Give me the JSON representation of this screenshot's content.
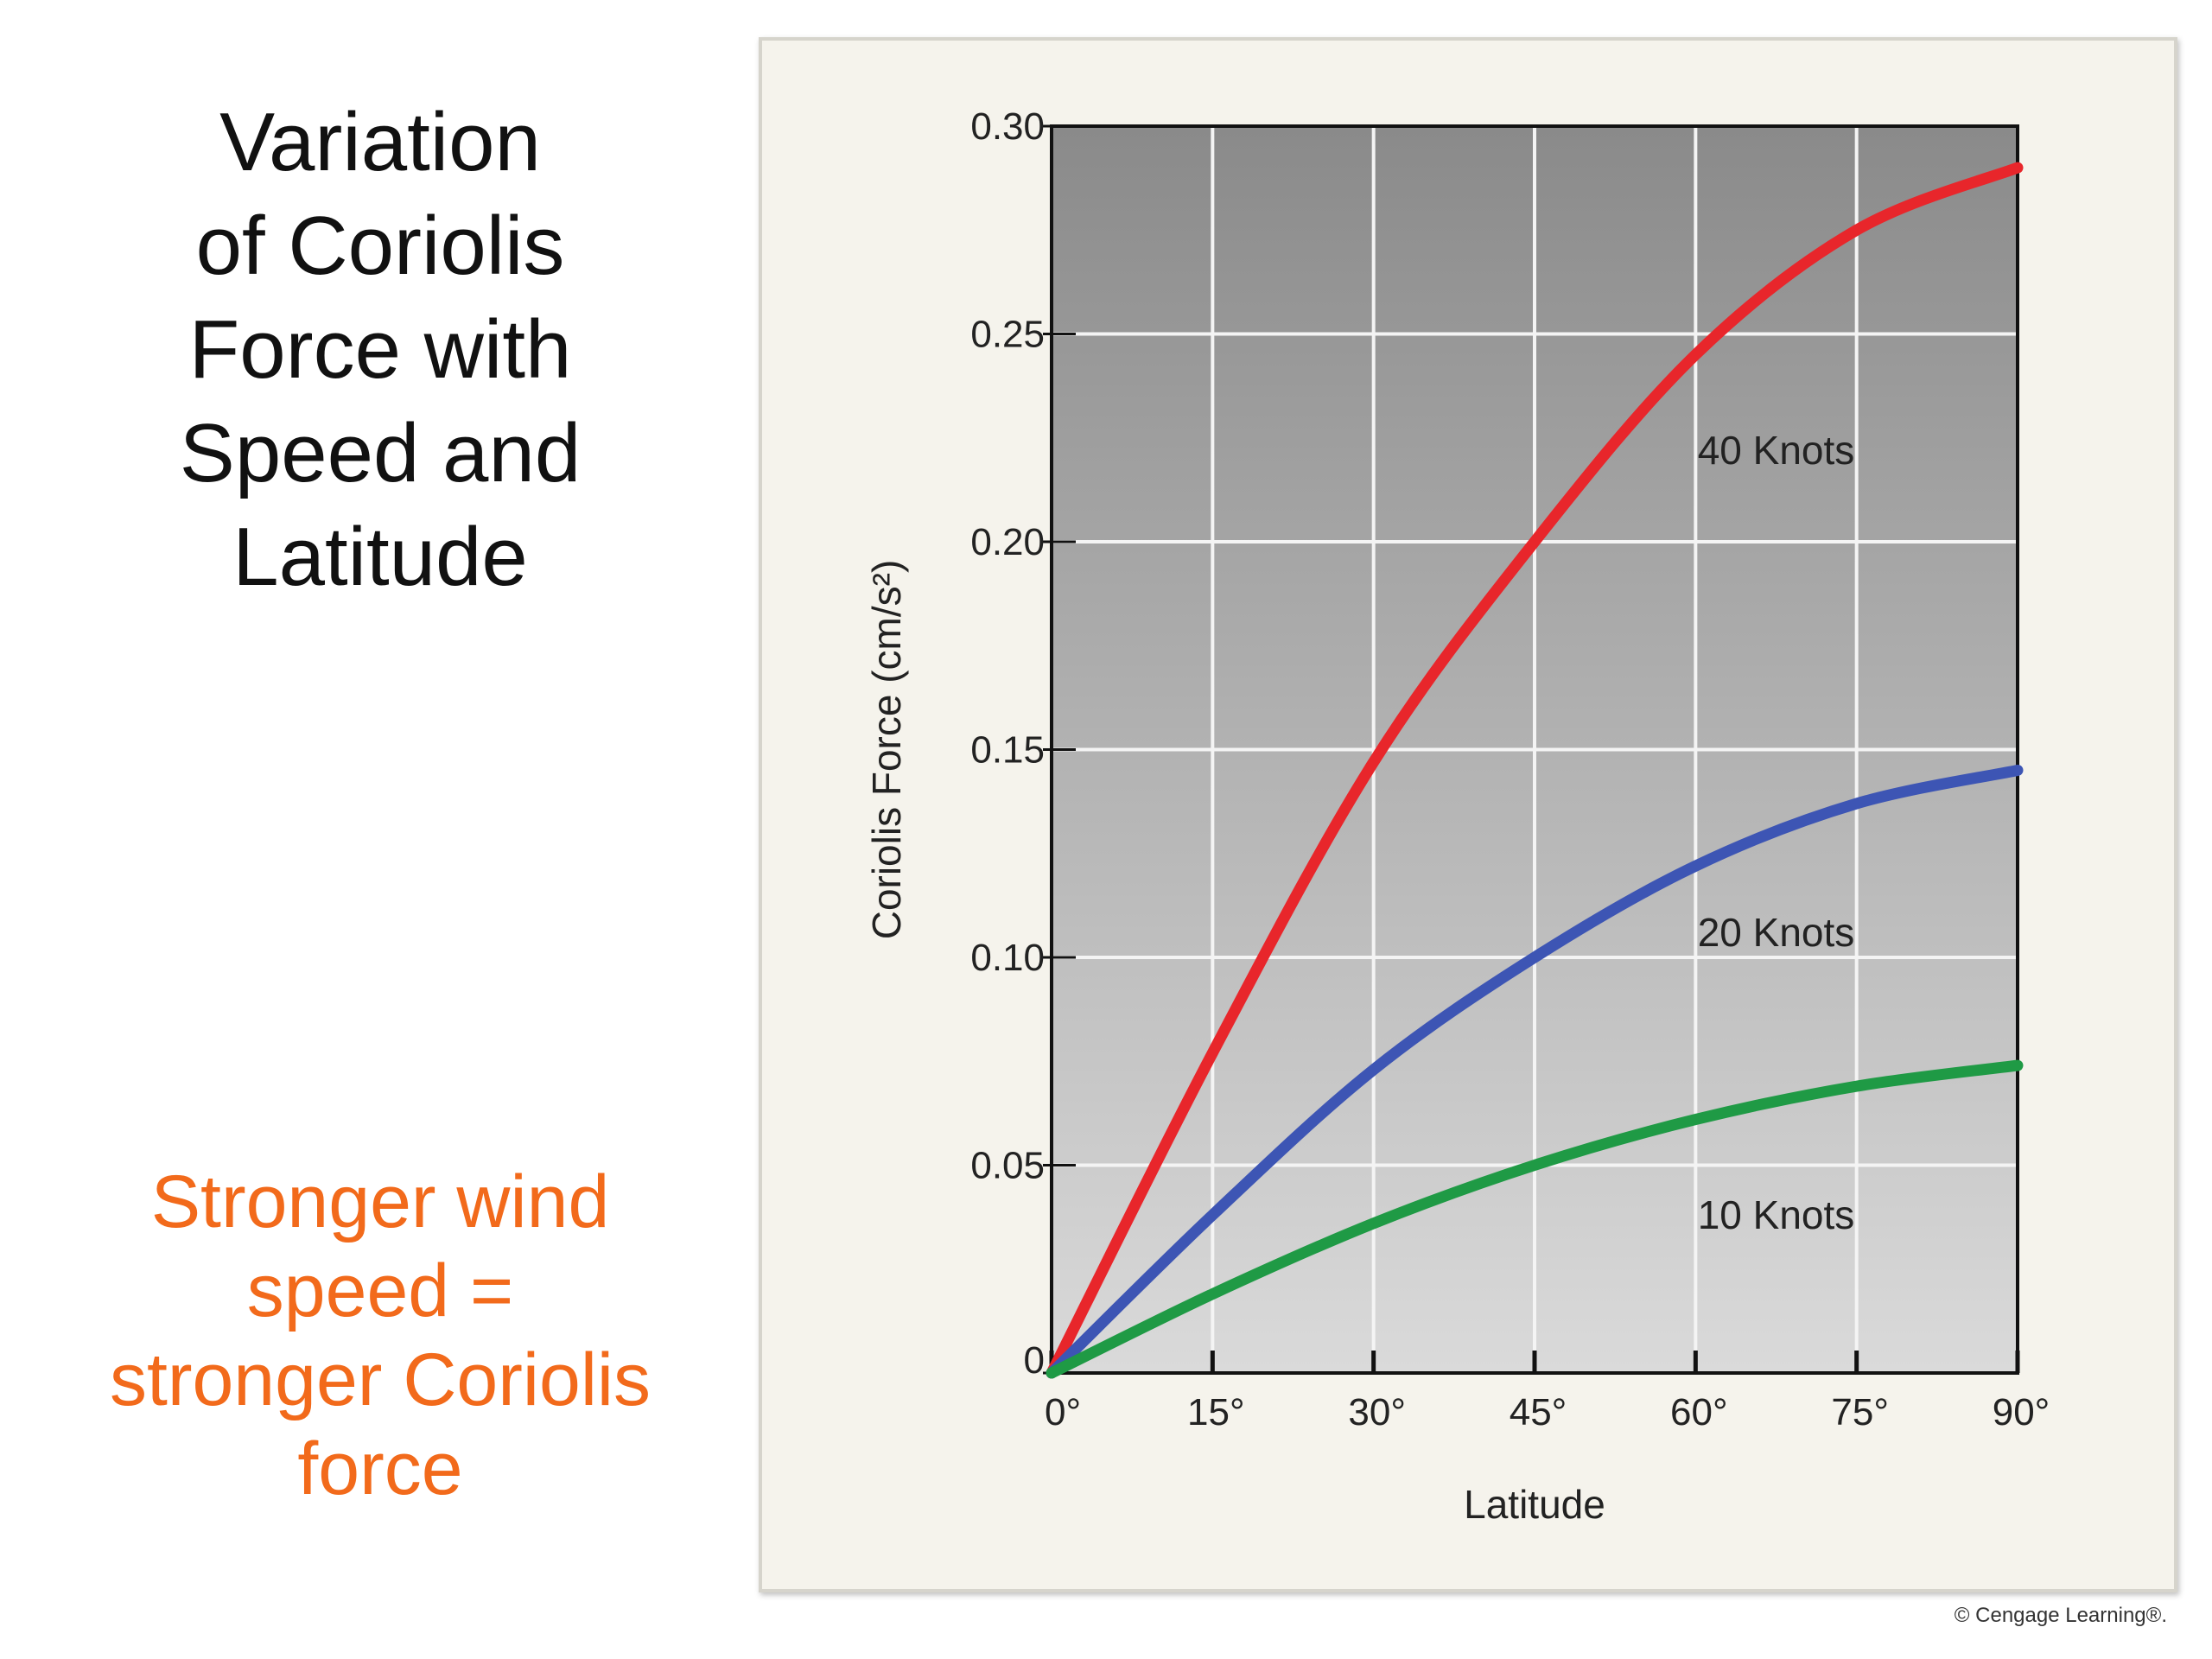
{
  "slide": {
    "title_lines": [
      "Variation",
      "of Coriolis",
      "Force with",
      "Speed and",
      "Latitude"
    ],
    "note_lines": [
      "Stronger wind",
      "speed =",
      "stronger Coriolis",
      "force"
    ],
    "note_color": "#f26a1b",
    "credit": "© Cengage Learning®."
  },
  "chart_data": {
    "type": "line",
    "title": "",
    "xlabel": "Latitude",
    "ylabel": "Coriolis Force (cm/s²)",
    "x": [
      0,
      15,
      30,
      45,
      60,
      75,
      90
    ],
    "x_tick_labels": [
      "0°",
      "15°",
      "30°",
      "45°",
      "60°",
      "75°",
      "90°"
    ],
    "y_ticks": [
      0,
      0.05,
      0.1,
      0.15,
      0.2,
      0.25,
      0.3
    ],
    "y_tick_labels": [
      "0",
      "0.05",
      "0.10",
      "0.15",
      "0.20",
      "0.25",
      "0.30"
    ],
    "xlim": [
      0,
      90
    ],
    "ylim": [
      0,
      0.3
    ],
    "grid": true,
    "series": [
      {
        "name": "40 Knots",
        "color": "#e8262b",
        "values": [
          0,
          0.077,
          0.147,
          0.2,
          0.245,
          0.275,
          0.29
        ]
      },
      {
        "name": "20 Knots",
        "color": "#3d55b4",
        "values": [
          0,
          0.038,
          0.073,
          0.1,
          0.122,
          0.137,
          0.145
        ]
      },
      {
        "name": "10 Knots",
        "color": "#1f9a45",
        "values": [
          0,
          0.019,
          0.036,
          0.05,
          0.061,
          0.069,
          0.074
        ]
      }
    ]
  }
}
